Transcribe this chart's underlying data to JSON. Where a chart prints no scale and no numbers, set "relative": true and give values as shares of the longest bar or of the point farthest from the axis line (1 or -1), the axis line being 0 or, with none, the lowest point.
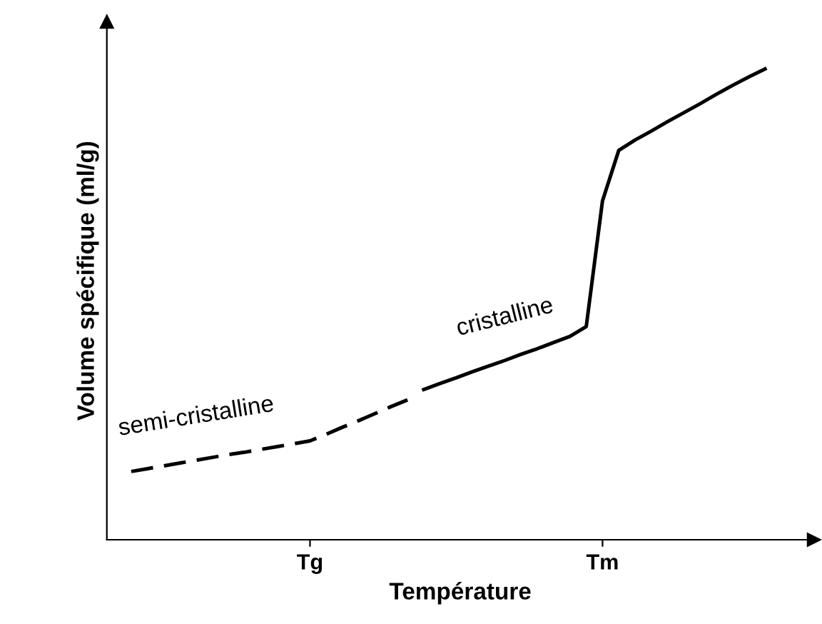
{
  "chart_data": {
    "type": "line",
    "relative": true,
    "xlabel": "Température",
    "ylabel": "Volume spécifique (ml/g)",
    "categories": [
      null,
      null,
      null,
      null,
      null,
      null,
      null,
      null,
      null,
      null,
      null,
      null,
      "Tg",
      null,
      null,
      null,
      null,
      null,
      null,
      null,
      null,
      null,
      null,
      null,
      null,
      null,
      null,
      null,
      null,
      null,
      "Tm",
      null,
      null,
      null,
      null,
      null,
      null,
      null,
      null,
      null,
      null
    ],
    "series": [
      {
        "name": "semi-cristalline",
        "color": "#000000",
        "line_style": "dashed",
        "values": [
          null,
          0.145,
          0.151,
          0.157,
          0.163,
          0.169,
          0.175,
          0.181,
          0.186,
          0.192,
          0.198,
          0.204,
          0.21,
          0.224,
          0.239,
          0.253,
          0.268,
          0.283,
          0.297,
          null,
          null,
          null,
          null,
          null,
          null,
          null,
          null,
          null,
          null,
          null,
          null,
          null,
          null,
          null,
          null,
          null,
          null,
          null,
          null,
          null,
          null
        ]
      },
      {
        "name": "cristalline",
        "color": "#000000",
        "line_style": "solid",
        "values": [
          null,
          null,
          null,
          null,
          null,
          null,
          null,
          null,
          null,
          null,
          null,
          null,
          null,
          null,
          null,
          null,
          null,
          null,
          null,
          0.319,
          0.332,
          0.344,
          0.357,
          0.369,
          0.381,
          0.394,
          0.406,
          0.419,
          0.432,
          0.453,
          0.72,
          0.827,
          0.849,
          0.868,
          0.888,
          0.907,
          0.926,
          0.946,
          0.965,
          0.983,
          1.0
        ]
      }
    ],
    "grid": false,
    "legend": false
  }
}
